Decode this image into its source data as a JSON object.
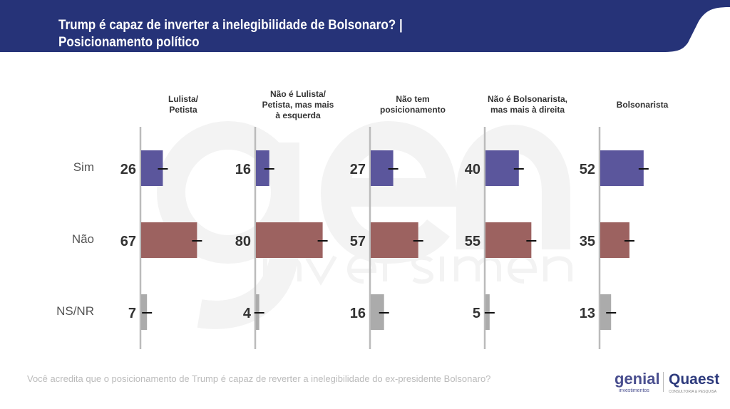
{
  "header": {
    "title_line1": "Trump é capaz de inverter a inelegibilidade de Bolsonaro? |",
    "title_line2": "Posicionamento político",
    "color": "#263378"
  },
  "watermark": {
    "line1": "genial",
    "line2": "investimentos"
  },
  "footer": {
    "question": "Você acredita que o posicionamento de Trump é capaz de reverter a inelegibilidade do ex-presidente Bolsonaro?"
  },
  "logos": {
    "genial": "genial",
    "genial_sub": "investimentos",
    "quaest": "Quaest",
    "quaest_sub": "CONSULTORIA & PESQUISA"
  },
  "chart_data": {
    "type": "bar",
    "orientation": "horizontal",
    "title": "Trump é capaz de inverter a inelegibilidade de Bolsonaro? | Posicionamento político",
    "panels": [
      "Lulista/\nPetista",
      "Não é Lulista/\nPetista, mas mais\nà esquerda",
      "Não tem\nposicionamento",
      "Não é Bolsonarista,\nmas mais à direita",
      "Bolsonarista"
    ],
    "categories": [
      "Sim",
      "Não",
      "NS/NR"
    ],
    "colors": {
      "Sim": "#5b569c",
      "Não": "#9c6260",
      "NS/NR": "#ababab"
    },
    "values": [
      [
        26,
        67,
        7
      ],
      [
        16,
        80,
        4
      ],
      [
        27,
        57,
        16
      ],
      [
        40,
        55,
        5
      ],
      [
        52,
        35,
        13
      ]
    ],
    "error_bars": true
  }
}
